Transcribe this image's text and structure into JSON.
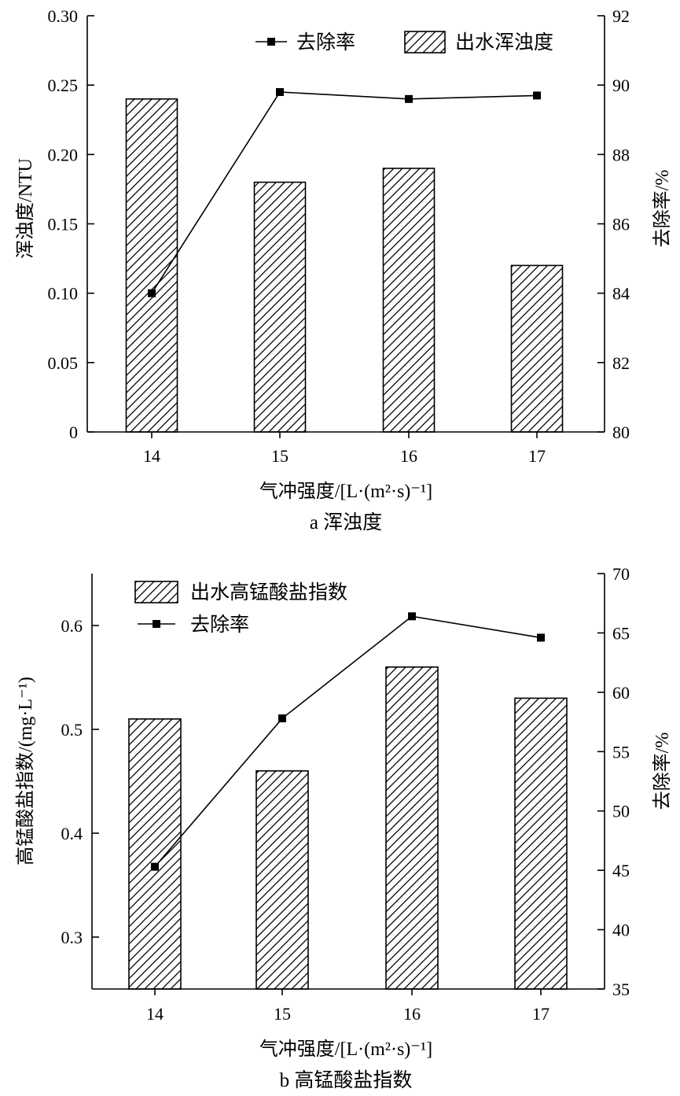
{
  "chart_data": [
    {
      "id": "a",
      "type": "bar",
      "combo_line": true,
      "caption": "a 浑浊度",
      "xlabel": "气冲强度/[L·(m²·s)⁻¹]",
      "ylabel": "浑浊度/NTU",
      "y2label": "去除率/%",
      "categories": [
        "14",
        "15",
        "16",
        "17"
      ],
      "ylim": [
        0,
        0.3
      ],
      "y2lim": [
        80,
        92
      ],
      "yticks": [
        "0",
        "0.05",
        "0.10",
        "0.15",
        "0.20",
        "0.25",
        "0.30"
      ],
      "y2ticks": [
        "80",
        "82",
        "84",
        "86",
        "88",
        "90",
        "92"
      ],
      "series": [
        {
          "name": "出水浑浊度",
          "kind": "bar",
          "axis": "left",
          "values": [
            0.24,
            0.18,
            0.19,
            0.12
          ]
        },
        {
          "name": "去除率",
          "kind": "line",
          "axis": "right",
          "values": [
            84.0,
            89.8,
            89.6,
            89.7
          ]
        }
      ],
      "legend": [
        {
          "name": "去除率",
          "kind": "line"
        },
        {
          "name": "出水浑浊度",
          "kind": "bar"
        }
      ]
    },
    {
      "id": "b",
      "type": "bar",
      "combo_line": true,
      "caption": "b 高锰酸盐指数",
      "xlabel": "气冲强度/[L·(m²·s)⁻¹]",
      "ylabel": "高锰酸盐指数/(mg·L⁻¹)",
      "y2label": "去除率/%",
      "categories": [
        "14",
        "15",
        "16",
        "17"
      ],
      "ylim": [
        0.25,
        0.65
      ],
      "y2lim": [
        35,
        70
      ],
      "yticks": [
        "0.3",
        "0.4",
        "0.5",
        "0.6"
      ],
      "y2ticks": [
        "35",
        "40",
        "45",
        "50",
        "55",
        "60",
        "65",
        "70"
      ],
      "series": [
        {
          "name": "出水高锰酸盐指数",
          "kind": "bar",
          "axis": "left",
          "values": [
            0.51,
            0.46,
            0.56,
            0.53
          ]
        },
        {
          "name": "去除率",
          "kind": "line",
          "axis": "right",
          "values": [
            45.3,
            57.8,
            66.4,
            64.6
          ]
        }
      ],
      "legend": [
        {
          "name": "出水高锰酸盐指数",
          "kind": "bar"
        },
        {
          "name": "去除率",
          "kind": "line"
        }
      ]
    }
  ]
}
